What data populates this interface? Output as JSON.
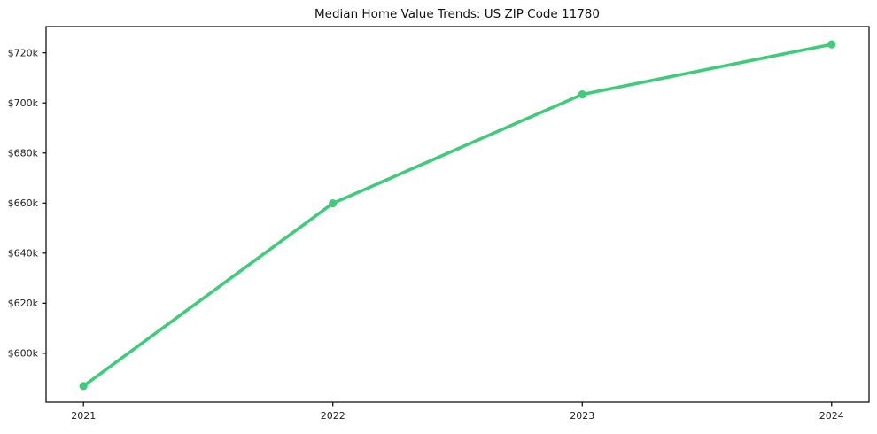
{
  "chart_data": {
    "type": "line",
    "title": "Median Home Value Trends: US ZIP Code 11780",
    "x": [
      2021,
      2022,
      2023,
      2024
    ],
    "x_tick_labels": [
      "2021",
      "2022",
      "2023",
      "2024"
    ],
    "series": [
      {
        "name": "Median home value",
        "values": [
          586.9,
          659.9,
          703.4,
          723.4
        ]
      }
    ],
    "y_ticks": [
      600,
      620,
      640,
      660,
      680,
      700,
      720
    ],
    "y_tick_labels": [
      "$600k",
      "$620k",
      "$640k",
      "$660k",
      "$680k",
      "$700k",
      "$720k"
    ],
    "xlim": [
      2020.85,
      2024.15
    ],
    "ylim": [
      580.5,
      730.5
    ],
    "grid": false,
    "legend": "none",
    "xlabel": "",
    "ylabel": "",
    "line_color": "#3ecc7a",
    "marker_color": "#3ecc7a",
    "axis_color": "#000000",
    "text_color": "#1c1c1c",
    "background": "#ffffff"
  }
}
